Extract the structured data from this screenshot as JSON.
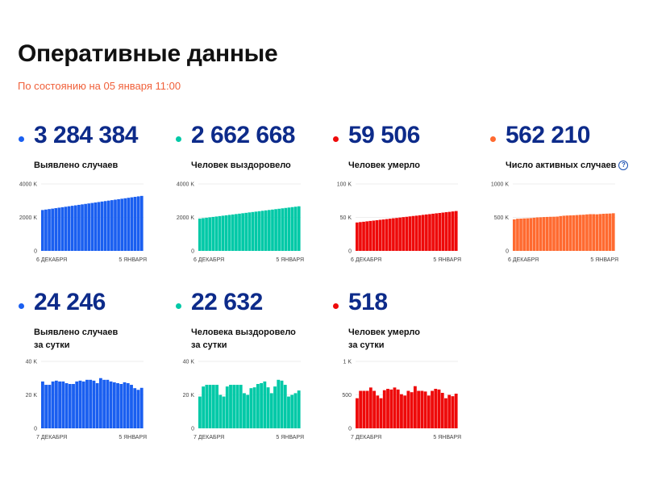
{
  "header": {
    "title": "Оперативные данные",
    "subtitle": "По состоянию на 05 января 11:00"
  },
  "colors": {
    "blue": "#1a5ff0",
    "teal": "#00c9a7",
    "red": "#ee0a0a",
    "orange": "#ff6a30",
    "number": "#0d2b8a"
  },
  "cards": [
    {
      "value": "3 284 384",
      "label": [
        "Выявлено случаев"
      ],
      "color": "#1a5ff0"
    },
    {
      "value": "2 662 668",
      "label": [
        "Человек выздоровело"
      ],
      "color": "#00c9a7"
    },
    {
      "value": "59 506",
      "label": [
        "Человек умерло"
      ],
      "color": "#ee0a0a"
    },
    {
      "value": "562 210",
      "label": [
        "Число активных случаев"
      ],
      "color": "#ff6a30",
      "help_icon": "question-circle-icon",
      "help_glyph": "?"
    },
    {
      "value": "24 246",
      "label": [
        "Выявлено случаев",
        "за сутки"
      ],
      "color": "#1a5ff0"
    },
    {
      "value": "22 632",
      "label": [
        "Человека выздоровело",
        "за сутки"
      ],
      "color": "#00c9a7"
    },
    {
      "value": "518",
      "label": [
        "Человек умерло",
        "за сутки"
      ],
      "color": "#ee0a0a"
    }
  ],
  "chart_data": [
    {
      "type": "bar",
      "unit": "K",
      "yticks": [
        "0",
        "2000 K",
        "4000 K"
      ],
      "ylim": [
        0,
        4000
      ],
      "xlabels": [
        "6 ДЕКАБРЯ",
        "5 ЯНВАРЯ"
      ],
      "color": "#1a5ff0",
      "values": [
        2440,
        2468,
        2496,
        2524,
        2553,
        2581,
        2609,
        2637,
        2665,
        2693,
        2721,
        2750,
        2778,
        2806,
        2834,
        2862,
        2890,
        2918,
        2947,
        2975,
        3003,
        3031,
        3059,
        3087,
        3115,
        3143,
        3172,
        3200,
        3228,
        3256,
        3284
      ]
    },
    {
      "type": "bar",
      "unit": "K",
      "yticks": [
        "0",
        "2000 K",
        "4000 K"
      ],
      "ylim": [
        0,
        4000
      ],
      "xlabels": [
        "6 ДЕКАБРЯ",
        "5 ЯНВАРЯ"
      ],
      "color": "#00c9a7",
      "values": [
        1930,
        1955,
        1979,
        2004,
        2028,
        2052,
        2077,
        2101,
        2126,
        2150,
        2174,
        2199,
        2223,
        2248,
        2272,
        2297,
        2321,
        2345,
        2370,
        2394,
        2419,
        2443,
        2467,
        2492,
        2516,
        2541,
        2565,
        2589,
        2614,
        2638,
        2663
      ]
    },
    {
      "type": "bar",
      "unit": "K",
      "yticks": [
        "0",
        "50 K",
        "100 K"
      ],
      "ylim": [
        0,
        100
      ],
      "xlabels": [
        "6 ДЕКАБРЯ",
        "5 ЯНВАРЯ"
      ],
      "color": "#ee0a0a",
      "values": [
        42.4,
        43.0,
        43.5,
        44.1,
        44.7,
        45.2,
        45.8,
        46.4,
        46.9,
        47.5,
        48.1,
        48.7,
        49.2,
        49.8,
        50.4,
        50.9,
        51.5,
        52.1,
        52.6,
        53.2,
        53.8,
        54.4,
        54.9,
        55.5,
        56.1,
        56.6,
        57.2,
        57.8,
        58.3,
        58.9,
        59.5
      ]
    },
    {
      "type": "bar",
      "unit": "K",
      "yticks": [
        "0",
        "500 K",
        "1000 K"
      ],
      "ylim": [
        0,
        1000
      ],
      "xlabels": [
        "6 ДЕКАБРЯ",
        "5 ЯНВАРЯ"
      ],
      "color": "#ff6a30",
      "values": [
        470,
        480,
        482,
        485,
        487,
        490,
        495,
        500,
        502,
        505,
        507,
        509,
        510,
        512,
        520,
        525,
        528,
        530,
        532,
        535,
        538,
        540,
        545,
        548,
        548,
        546,
        550,
        554,
        556,
        558,
        562
      ]
    },
    {
      "type": "bar",
      "unit": "K",
      "yticks": [
        "0",
        "20 K",
        "40 K"
      ],
      "ylim": [
        0,
        40
      ],
      "xlabels": [
        "7 ДЕКАБРЯ",
        "5 ЯНВАРЯ"
      ],
      "color": "#1a5ff0",
      "values": [
        28,
        26,
        26,
        28,
        28.5,
        28,
        28,
        27,
        26.5,
        26.5,
        28,
        28.5,
        28,
        29,
        29,
        28.5,
        27,
        30,
        29,
        29,
        28,
        27.5,
        27,
        26.5,
        27.5,
        27,
        26,
        24,
        23,
        24.2
      ]
    },
    {
      "type": "bar",
      "unit": "K",
      "yticks": [
        "0",
        "20 K",
        "40 K"
      ],
      "ylim": [
        0,
        40
      ],
      "xlabels": [
        "7 ДЕКАБРЯ",
        "5 ЯНВАРЯ"
      ],
      "color": "#00c9a7",
      "values": [
        19,
        25,
        26,
        26,
        26,
        26,
        20,
        19,
        25,
        26,
        26,
        26,
        26,
        21,
        20,
        24,
        24.5,
        26.5,
        27,
        28,
        24.5,
        21,
        25,
        29,
        28.5,
        26,
        19,
        20,
        21,
        22.6
      ]
    },
    {
      "type": "bar",
      "unit": "",
      "yticks": [
        "0",
        "500",
        "1 K"
      ],
      "ylim": [
        0,
        1000
      ],
      "xlabels": [
        "7 ДЕКАБРЯ",
        "5 ЯНВАРЯ"
      ],
      "color": "#ee0a0a",
      "values": [
        450,
        560,
        560,
        560,
        610,
        560,
        490,
        450,
        570,
        590,
        580,
        610,
        580,
        510,
        490,
        560,
        540,
        630,
        560,
        560,
        550,
        490,
        560,
        590,
        580,
        530,
        450,
        500,
        480,
        518
      ]
    }
  ]
}
